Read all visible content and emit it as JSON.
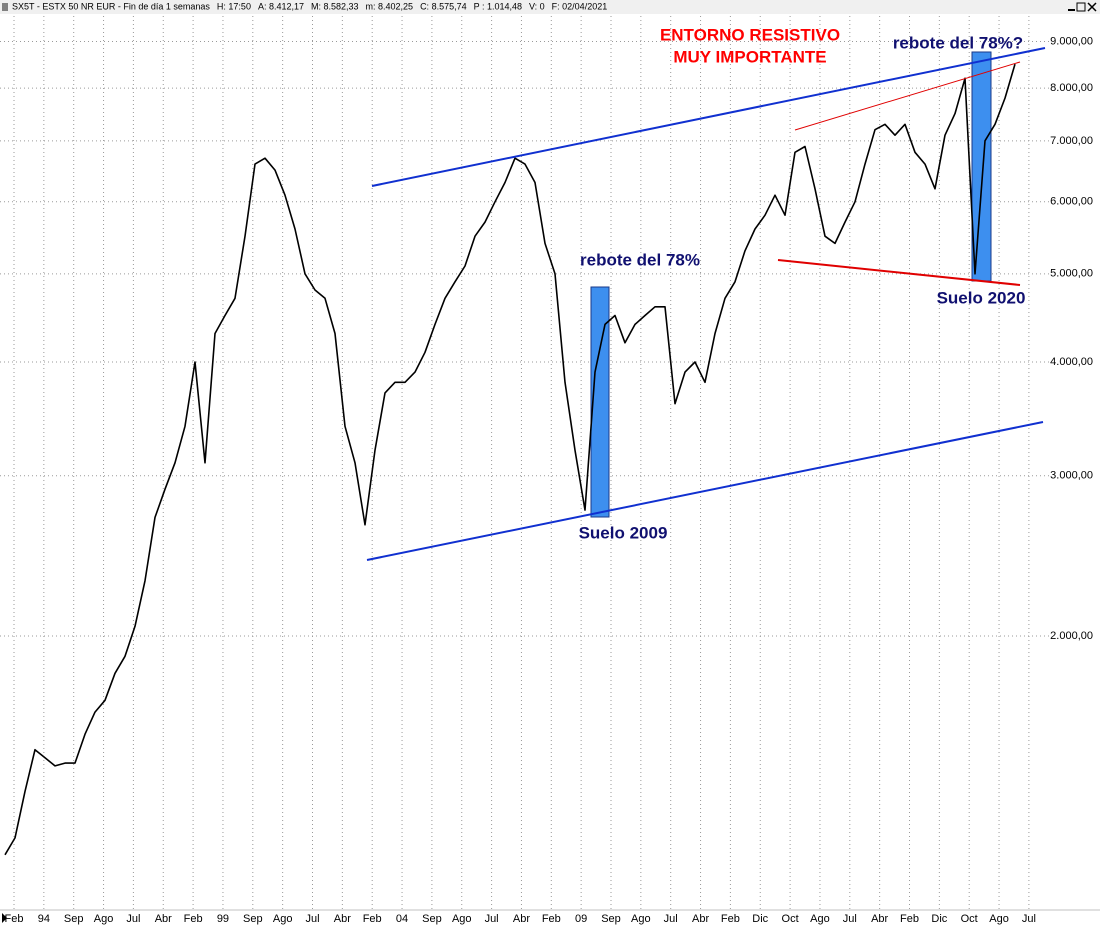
{
  "chart_data": {
    "type": "line",
    "header": [
      "SX5T - ESTX 50 NR EUR - Fin de día 1 semanas",
      "H: 17:50",
      "A: 8.412,17",
      "M: 8.582,33",
      "m: 8.402,25",
      "C: 8.575,74",
      "P : 1.014,48",
      "V: 0",
      "F: 02/04/2021"
    ],
    "header_highlight_color": "#ff0000",
    "header_highlight_index": 6,
    "xtick_labels": [
      "Feb",
      "94",
      "Sep",
      "Ago",
      "Jul",
      "Abr",
      "Feb",
      "99",
      "Sep",
      "Ago",
      "Jul",
      "Abr",
      "Feb",
      "04",
      "Sep",
      "Ago",
      "Jul",
      "Abr",
      "Feb",
      "09",
      "Sep",
      "Ago",
      "Jul",
      "Abr",
      "Feb",
      "Dic",
      "Oct",
      "Ago",
      "Jul",
      "Abr",
      "Feb",
      "Dic",
      "Oct",
      "Ago",
      "Jul"
    ],
    "series": [
      {
        "color": "#000000",
        "values": [
          1150,
          1200,
          1350,
          1500,
          1470,
          1440,
          1450,
          1450,
          1560,
          1650,
          1700,
          1820,
          1900,
          2050,
          2300,
          2700,
          2900,
          3100,
          3400,
          4000,
          3100,
          4300,
          4500,
          4700,
          5500,
          6600,
          6700,
          6500,
          6100,
          5600,
          5000,
          4800,
          4700,
          4300,
          3400,
          3100,
          2650,
          3200,
          3700,
          3800,
          3800,
          3900,
          4100,
          4400,
          4700,
          4900,
          5100,
          5500,
          5700,
          6000,
          6300,
          6700,
          6600,
          6300,
          5400,
          5000,
          3800,
          3200,
          2750,
          3900,
          4400,
          4500,
          4200,
          4400,
          4500,
          4600,
          4600,
          3600,
          3900,
          4000,
          3800,
          4300,
          4700,
          4900,
          5300,
          5600,
          5800,
          6100,
          5800,
          6800,
          6900,
          6200,
          5500,
          5400,
          5700,
          6000,
          6600,
          7200,
          7300,
          7100,
          7300,
          6800,
          6600,
          6200,
          7100,
          7500,
          8200,
          5000,
          7000,
          7300,
          7800,
          8500
        ]
      }
    ],
    "log_scale": true,
    "grid": true,
    "ylim": [
      1000,
      9600
    ],
    "yticks": [
      {
        "value": 2000,
        "label": "2.000,00"
      },
      {
        "value": 3000,
        "label": "3.000,00"
      },
      {
        "value": 4000,
        "label": "4.000,00"
      },
      {
        "value": 5000,
        "label": "5.000,00"
      },
      {
        "value": 6000,
        "label": "6.000,00"
      },
      {
        "value": 7000,
        "label": "7.000,00"
      },
      {
        "value": 8000,
        "label": "8.000,00"
      },
      {
        "value": 9000,
        "label": "9.000,00"
      }
    ],
    "annotations": [
      "ENTORNO RESISTIVO",
      "MUY IMPORTANTE",
      "rebote del 78%?",
      "rebote del 78%",
      "Suelo 2020",
      "Suelo 2009"
    ]
  }
}
